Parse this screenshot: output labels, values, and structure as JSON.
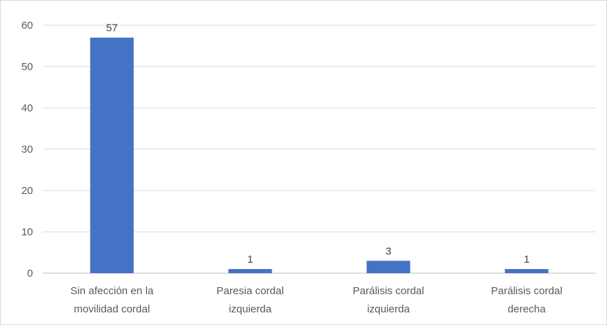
{
  "chart_data": {
    "type": "bar",
    "categories": [
      [
        "Sin afección en la",
        "movilidad cordal"
      ],
      [
        "Paresia cordal",
        "izquierda"
      ],
      [
        "Parálisis cordal",
        "izquierda"
      ],
      [
        "Parálisis cordal",
        "derecha"
      ]
    ],
    "values": [
      57,
      1,
      3,
      1
    ],
    "data_labels": [
      "57",
      "1",
      "3",
      "1"
    ],
    "ylim": [
      0,
      60
    ],
    "yticks": [
      0,
      10,
      20,
      30,
      40,
      50,
      60
    ],
    "grid": true,
    "legend": "none",
    "bar_color": "#4472c4",
    "grid_color": "#d9d9d9",
    "axis_color": "#bfbfbf"
  }
}
